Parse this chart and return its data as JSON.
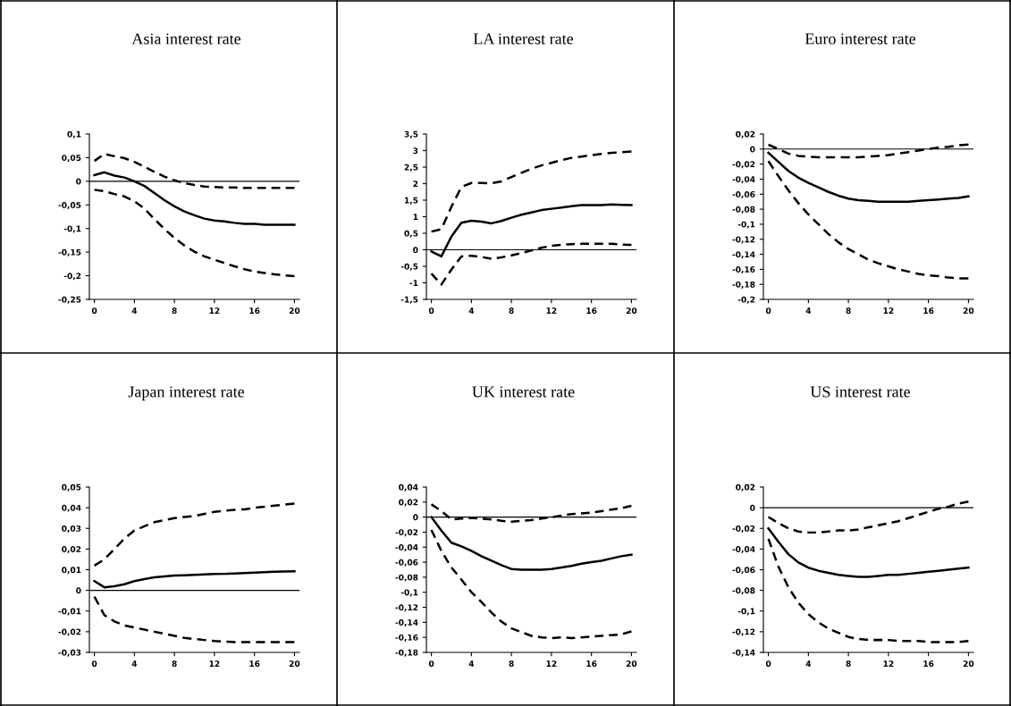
{
  "chart_data": [
    {
      "type": "line",
      "title": "Asia interest rate",
      "x": [
        0,
        1,
        2,
        3,
        4,
        5,
        6,
        7,
        8,
        9,
        10,
        11,
        12,
        13,
        14,
        15,
        16,
        17,
        18,
        19,
        20
      ],
      "series": [
        {
          "color": "#000000",
          "line_style": "dashed",
          "values": [
            0.043,
            0.058,
            0.053,
            0.049,
            0.041,
            0.031,
            0.02,
            0.01,
            0.002,
            -0.004,
            -0.008,
            -0.011,
            -0.012,
            -0.013,
            -0.013,
            -0.014,
            -0.014,
            -0.014,
            -0.014,
            -0.014,
            -0.014
          ]
        },
        {
          "color": "#000000",
          "line_style": "solid",
          "values": [
            0.013,
            0.019,
            0.012,
            0.008,
            0.0,
            -0.01,
            -0.025,
            -0.04,
            -0.053,
            -0.064,
            -0.072,
            -0.079,
            -0.083,
            -0.085,
            -0.088,
            -0.09,
            -0.09,
            -0.092,
            -0.092,
            -0.092,
            -0.092
          ]
        },
        {
          "color": "#000000",
          "line_style": "dashed",
          "values": [
            -0.018,
            -0.021,
            -0.027,
            -0.032,
            -0.042,
            -0.058,
            -0.08,
            -0.101,
            -0.12,
            -0.136,
            -0.149,
            -0.159,
            -0.166,
            -0.173,
            -0.18,
            -0.186,
            -0.191,
            -0.194,
            -0.197,
            -0.199,
            -0.201
          ]
        }
      ],
      "xlim": [
        -0.5,
        20.5
      ],
      "xticks": [
        0,
        4,
        8,
        12,
        16,
        20
      ],
      "ylim": [
        -0.25,
        0.1
      ],
      "yticks": [
        {
          "value": -0.25,
          "label": "-0,25"
        },
        {
          "value": -0.2,
          "label": "-0,2"
        },
        {
          "value": -0.15,
          "label": "-0,15"
        },
        {
          "value": -0.1,
          "label": "-0,1"
        },
        {
          "value": -0.05,
          "label": "-0,05"
        },
        0,
        {
          "value": 0.05,
          "label": "0,05"
        },
        {
          "value": 0.1,
          "label": "0,1"
        }
      ],
      "ref_lines": [
        {
          "axis": "y",
          "value": 0,
          "color": "#000000"
        }
      ]
    },
    {
      "type": "line",
      "title": "LA interest rate",
      "x": [
        0,
        1,
        2,
        3,
        4,
        5,
        6,
        7,
        8,
        9,
        10,
        11,
        12,
        13,
        14,
        15,
        16,
        17,
        18,
        19,
        20
      ],
      "series": [
        {
          "color": "#000000",
          "line_style": "dashed",
          "values": [
            0.55,
            0.62,
            1.3,
            1.9,
            2.02,
            2.02,
            2.01,
            2.07,
            2.2,
            2.33,
            2.45,
            2.55,
            2.63,
            2.71,
            2.78,
            2.82,
            2.86,
            2.9,
            2.93,
            2.95,
            2.97
          ]
        },
        {
          "color": "#000000",
          "line_style": "solid",
          "values": [
            -0.05,
            -0.2,
            0.4,
            0.82,
            0.88,
            0.85,
            0.8,
            0.87,
            0.97,
            1.06,
            1.13,
            1.2,
            1.24,
            1.28,
            1.32,
            1.35,
            1.35,
            1.35,
            1.37,
            1.36,
            1.35
          ]
        },
        {
          "color": "#000000",
          "line_style": "dashed",
          "values": [
            -0.72,
            -1.05,
            -0.6,
            -0.2,
            -0.18,
            -0.22,
            -0.27,
            -0.23,
            -0.17,
            -0.1,
            -0.02,
            0.06,
            0.12,
            0.15,
            0.17,
            0.18,
            0.18,
            0.18,
            0.18,
            0.16,
            0.15
          ]
        }
      ],
      "xlim": [
        -0.5,
        20.5
      ],
      "xticks": [
        0,
        4,
        8,
        12,
        16,
        20
      ],
      "ylim": [
        -1.5,
        3.5
      ],
      "yticks": [
        {
          "value": -1.5,
          "label": "-1,5"
        },
        -1,
        {
          "value": -0.5,
          "label": "-0,5"
        },
        0,
        {
          "value": 0.5,
          "label": "0,5"
        },
        1,
        {
          "value": 1.5,
          "label": "1,5"
        },
        2,
        {
          "value": 2.5,
          "label": "2,5"
        },
        3,
        {
          "value": 3.5,
          "label": "3,5"
        }
      ],
      "ref_lines": [
        {
          "axis": "y",
          "value": 0,
          "color": "#000000"
        }
      ]
    },
    {
      "type": "line",
      "title": "Euro interest rate",
      "x": [
        0,
        1,
        2,
        3,
        4,
        5,
        6,
        7,
        8,
        9,
        10,
        11,
        12,
        13,
        14,
        15,
        16,
        17,
        18,
        19,
        20
      ],
      "series": [
        {
          "color": "#000000",
          "line_style": "dashed",
          "values": [
            0.006,
            0.0,
            -0.006,
            -0.009,
            -0.01,
            -0.011,
            -0.011,
            -0.011,
            -0.011,
            -0.011,
            -0.01,
            -0.009,
            -0.008,
            -0.006,
            -0.004,
            -0.002,
            0.0,
            0.002,
            0.003,
            0.005,
            0.006
          ]
        },
        {
          "color": "#000000",
          "line_style": "solid",
          "values": [
            -0.005,
            -0.017,
            -0.029,
            -0.038,
            -0.045,
            -0.051,
            -0.057,
            -0.062,
            -0.066,
            -0.068,
            -0.069,
            -0.07,
            -0.07,
            -0.07,
            -0.07,
            -0.069,
            -0.068,
            -0.067,
            -0.066,
            -0.065,
            -0.063
          ]
        },
        {
          "color": "#000000",
          "line_style": "dashed",
          "values": [
            -0.016,
            -0.036,
            -0.055,
            -0.072,
            -0.087,
            -0.1,
            -0.113,
            -0.124,
            -0.133,
            -0.14,
            -0.147,
            -0.152,
            -0.156,
            -0.16,
            -0.163,
            -0.166,
            -0.168,
            -0.169,
            -0.171,
            -0.172,
            -0.172
          ]
        }
      ],
      "xlim": [
        -0.5,
        20.5
      ],
      "xticks": [
        0,
        4,
        8,
        12,
        16,
        20
      ],
      "ylim": [
        -0.2,
        0.02
      ],
      "yticks": [
        {
          "value": -0.2,
          "label": "-0,2"
        },
        {
          "value": -0.18,
          "label": "-0,18"
        },
        {
          "value": -0.16,
          "label": "-0,16"
        },
        {
          "value": -0.14,
          "label": "-0,14"
        },
        {
          "value": -0.12,
          "label": "-0,12"
        },
        {
          "value": -0.1,
          "label": "-0,1"
        },
        {
          "value": -0.08,
          "label": "-0,08"
        },
        {
          "value": -0.06,
          "label": "-0,06"
        },
        {
          "value": -0.04,
          "label": "-0,04"
        },
        {
          "value": -0.02,
          "label": "-0,02"
        },
        0,
        {
          "value": 0.02,
          "label": "0,02"
        }
      ],
      "ref_lines": [
        {
          "axis": "y",
          "value": 0,
          "color": "#000000"
        }
      ]
    },
    {
      "type": "line",
      "title": "Japan interest rate",
      "x": [
        0,
        1,
        2,
        3,
        4,
        5,
        6,
        7,
        8,
        9,
        10,
        11,
        12,
        13,
        14,
        15,
        16,
        17,
        18,
        19,
        20
      ],
      "series": [
        {
          "color": "#000000",
          "line_style": "dashed",
          "values": [
            0.012,
            0.015,
            0.02,
            0.025,
            0.029,
            0.031,
            0.033,
            0.034,
            0.035,
            0.0355,
            0.036,
            0.037,
            0.038,
            0.0385,
            0.039,
            0.0392,
            0.04,
            0.0405,
            0.041,
            0.0415,
            0.042
          ]
        },
        {
          "color": "#000000",
          "line_style": "solid",
          "values": [
            0.0045,
            0.0015,
            0.002,
            0.003,
            0.0045,
            0.0055,
            0.0063,
            0.0068,
            0.0072,
            0.0073,
            0.0075,
            0.0077,
            0.0079,
            0.008,
            0.0082,
            0.0084,
            0.0086,
            0.0088,
            0.009,
            0.0091,
            0.0092
          ]
        },
        {
          "color": "#000000",
          "line_style": "dashed",
          "values": [
            -0.003,
            -0.012,
            -0.015,
            -0.017,
            -0.018,
            -0.019,
            -0.02,
            -0.021,
            -0.022,
            -0.023,
            -0.0235,
            -0.024,
            -0.0245,
            -0.0248,
            -0.025,
            -0.025,
            -0.025,
            -0.025,
            -0.025,
            -0.025,
            -0.025
          ]
        }
      ],
      "xlim": [
        -0.5,
        20.5
      ],
      "xticks": [
        0,
        4,
        8,
        12,
        16,
        20
      ],
      "ylim": [
        -0.03,
        0.05
      ],
      "yticks": [
        {
          "value": -0.03,
          "label": "-0,03"
        },
        {
          "value": -0.02,
          "label": "-0,02"
        },
        {
          "value": -0.01,
          "label": "-0,01"
        },
        0,
        {
          "value": 0.01,
          "label": "0,01"
        },
        {
          "value": 0.02,
          "label": "0,02"
        },
        {
          "value": 0.03,
          "label": "0,03"
        },
        {
          "value": 0.04,
          "label": "0,04"
        },
        {
          "value": 0.05,
          "label": "0,05"
        }
      ],
      "ref_lines": [
        {
          "axis": "y",
          "value": 0,
          "color": "#000000"
        }
      ]
    },
    {
      "type": "line",
      "title": "UK interest rate",
      "x": [
        0,
        1,
        2,
        3,
        4,
        5,
        6,
        7,
        8,
        9,
        10,
        11,
        12,
        13,
        14,
        15,
        16,
        17,
        18,
        19,
        20
      ],
      "series": [
        {
          "color": "#000000",
          "line_style": "dashed",
          "values": [
            0.017,
            0.008,
            -0.003,
            -0.002,
            -0.001,
            -0.002,
            -0.003,
            -0.005,
            -0.006,
            -0.005,
            -0.004,
            -0.002,
            0.0,
            0.002,
            0.004,
            0.005,
            0.006,
            0.008,
            0.01,
            0.012,
            0.015
          ]
        },
        {
          "color": "#000000",
          "line_style": "solid",
          "values": [
            0.0,
            -0.018,
            -0.034,
            -0.039,
            -0.045,
            -0.052,
            -0.058,
            -0.064,
            -0.069,
            -0.07,
            -0.07,
            -0.07,
            -0.069,
            -0.067,
            -0.065,
            -0.062,
            -0.06,
            -0.058,
            -0.055,
            -0.052,
            -0.05
          ]
        },
        {
          "color": "#000000",
          "line_style": "dashed",
          "values": [
            -0.017,
            -0.045,
            -0.067,
            -0.083,
            -0.1,
            -0.113,
            -0.127,
            -0.139,
            -0.148,
            -0.153,
            -0.158,
            -0.16,
            -0.161,
            -0.16,
            -0.161,
            -0.16,
            -0.159,
            -0.158,
            -0.157,
            -0.156,
            -0.152
          ]
        }
      ],
      "xlim": [
        -0.5,
        20.5
      ],
      "xticks": [
        0,
        4,
        8,
        12,
        16,
        20
      ],
      "ylim": [
        -0.18,
        0.04
      ],
      "yticks": [
        {
          "value": -0.18,
          "label": "-0,18"
        },
        {
          "value": -0.16,
          "label": "-0,16"
        },
        {
          "value": -0.14,
          "label": "-0,14"
        },
        {
          "value": -0.12,
          "label": "-0,12"
        },
        {
          "value": -0.1,
          "label": "-0,1"
        },
        {
          "value": -0.08,
          "label": "-0,08"
        },
        {
          "value": -0.06,
          "label": "-0,06"
        },
        {
          "value": -0.04,
          "label": "-0,04"
        },
        {
          "value": -0.02,
          "label": "-0,02"
        },
        0,
        {
          "value": 0.02,
          "label": "0,02"
        },
        {
          "value": 0.04,
          "label": "0,04"
        }
      ],
      "ref_lines": [
        {
          "axis": "y",
          "value": 0,
          "color": "#000000"
        }
      ]
    },
    {
      "type": "line",
      "title": "US interest rate",
      "x": [
        0,
        1,
        2,
        3,
        4,
        5,
        6,
        7,
        8,
        9,
        10,
        11,
        12,
        13,
        14,
        15,
        16,
        17,
        18,
        19,
        20
      ],
      "series": [
        {
          "color": "#000000",
          "line_style": "dashed",
          "values": [
            -0.009,
            -0.015,
            -0.02,
            -0.023,
            -0.024,
            -0.024,
            -0.023,
            -0.022,
            -0.022,
            -0.021,
            -0.019,
            -0.017,
            -0.015,
            -0.013,
            -0.01,
            -0.007,
            -0.004,
            -0.001,
            0.001,
            0.004,
            0.006
          ]
        },
        {
          "color": "#000000",
          "line_style": "solid",
          "values": [
            -0.02,
            -0.033,
            -0.045,
            -0.053,
            -0.058,
            -0.061,
            -0.063,
            -0.065,
            -0.066,
            -0.067,
            -0.067,
            -0.066,
            -0.065,
            -0.065,
            -0.064,
            -0.063,
            -0.062,
            -0.061,
            -0.06,
            -0.059,
            -0.058
          ]
        },
        {
          "color": "#000000",
          "line_style": "dashed",
          "values": [
            -0.03,
            -0.057,
            -0.077,
            -0.092,
            -0.103,
            -0.111,
            -0.117,
            -0.121,
            -0.125,
            -0.127,
            -0.128,
            -0.128,
            -0.128,
            -0.129,
            -0.129,
            -0.129,
            -0.13,
            -0.13,
            -0.13,
            -0.13,
            -0.129
          ]
        }
      ],
      "xlim": [
        -0.5,
        20.5
      ],
      "xticks": [
        0,
        4,
        8,
        12,
        16,
        20
      ],
      "ylim": [
        -0.14,
        0.02
      ],
      "yticks": [
        {
          "value": -0.14,
          "label": "-0,14"
        },
        {
          "value": -0.12,
          "label": "-0,12"
        },
        {
          "value": -0.1,
          "label": "-0,1"
        },
        {
          "value": -0.08,
          "label": "-0,08"
        },
        {
          "value": -0.06,
          "label": "-0,06"
        },
        {
          "value": -0.04,
          "label": "-0,04"
        },
        {
          "value": -0.02,
          "label": "-0,02"
        },
        0,
        {
          "value": 0.02,
          "label": "0,02"
        }
      ],
      "ref_lines": [
        {
          "axis": "y",
          "value": 0,
          "color": "#000000"
        }
      ]
    }
  ]
}
